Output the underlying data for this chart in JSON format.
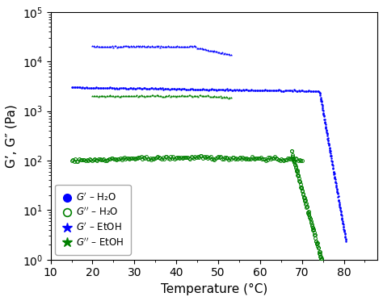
{
  "title": "",
  "xlabel": "Temperature (°C)",
  "ylabel": "G’, G″ (Pa)",
  "xlim": [
    10,
    88
  ],
  "ylim": [
    1.0,
    100000.0
  ],
  "xticks": [
    10,
    20,
    30,
    40,
    50,
    60,
    70,
    80
  ],
  "blue_color": "#0000FF",
  "green_color": "#008000",
  "background_color": "#FFFFFF",
  "Gprime_H2O_plateau_T": [
    15,
    74
  ],
  "Gprime_H2O_plateau_val": 3000,
  "Gprime_H2O_drop_T": [
    74,
    80.5
  ],
  "Gdprime_H2O_plateau_T": [
    15,
    70
  ],
  "Gdprime_H2O_plateau_val": 100,
  "Gdprime_H2O_drop_T": [
    67,
    80.5
  ],
  "Gprime_EtOH_T": [
    20,
    53
  ],
  "Gprime_EtOH_val": 20000,
  "Gdprime_EtOH_T": [
    20,
    53
  ],
  "Gdprime_EtOH_val": 2000
}
